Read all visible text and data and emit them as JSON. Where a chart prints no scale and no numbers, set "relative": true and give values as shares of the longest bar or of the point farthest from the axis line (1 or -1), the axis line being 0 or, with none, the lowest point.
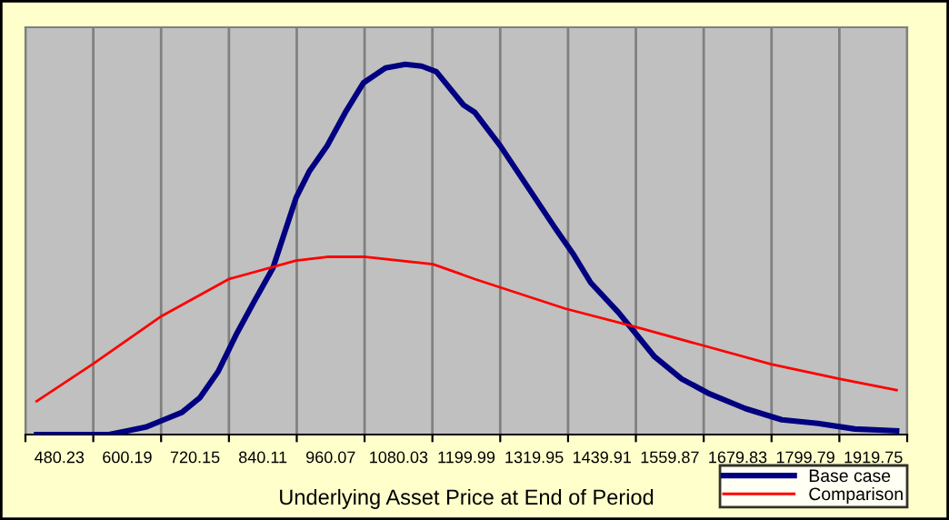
{
  "chart_data": {
    "type": "line",
    "xlabel": "Underlying Asset Price at End of Period",
    "relative": true,
    "xlim": [
      420.25,
      1979.73
    ],
    "xticks": [
      {
        "value": 420.25,
        "label": null
      },
      {
        "value": 480.23,
        "label": "480.23"
      },
      {
        "value": 540.21,
        "label": null
      },
      {
        "value": 600.19,
        "label": "600.19"
      },
      {
        "value": 660.17,
        "label": null
      },
      {
        "value": 720.15,
        "label": "720.15"
      },
      {
        "value": 780.13,
        "label": null
      },
      {
        "value": 840.11,
        "label": "840.11"
      },
      {
        "value": 900.09,
        "label": null
      },
      {
        "value": 960.07,
        "label": "960.07"
      },
      {
        "value": 1020.05,
        "label": null
      },
      {
        "value": 1080.03,
        "label": "1080.03"
      },
      {
        "value": 1140.01,
        "label": null
      },
      {
        "value": 1199.99,
        "label": "1199.99"
      },
      {
        "value": 1259.97,
        "label": null
      },
      {
        "value": 1319.95,
        "label": "1319.95"
      },
      {
        "value": 1379.93,
        "label": null
      },
      {
        "value": 1439.91,
        "label": "1439.91"
      },
      {
        "value": 1499.89,
        "label": null
      },
      {
        "value": 1559.87,
        "label": "1559.87"
      },
      {
        "value": 1619.85,
        "label": null
      },
      {
        "value": 1679.83,
        "label": "1679.83"
      },
      {
        "value": 1739.81,
        "label": null
      },
      {
        "value": 1799.79,
        "label": "1799.79"
      },
      {
        "value": 1859.77,
        "label": null
      },
      {
        "value": 1919.75,
        "label": "1919.75"
      },
      {
        "value": 1979.73,
        "label": null
      }
    ],
    "grid": "x",
    "legend": "bottom right",
    "marker": "none",
    "line_style": "solid",
    "series": [
      {
        "name": "Base case",
        "color": "#000080",
        "x": [
          440,
          568,
          600,
          633,
          665,
          697,
          729,
          761,
          793,
          825,
          858,
          899,
          922,
          954,
          986,
          1018,
          1057,
          1092,
          1121,
          1147,
          1195,
          1215,
          1260,
          1308,
          1356,
          1388,
          1420,
          1469,
          1501,
          1533,
          1581,
          1630,
          1694,
          1758,
          1822,
          1887,
          1961
        ],
        "values": [
          0,
          0,
          0.01,
          0.02,
          0.04,
          0.06,
          0.1,
          0.17,
          0.27,
          0.36,
          0.45,
          0.64,
          0.71,
          0.78,
          0.87,
          0.95,
          0.99,
          1,
          0.995,
          0.98,
          0.89,
          0.87,
          0.78,
          0.67,
          0.56,
          0.49,
          0.41,
          0.33,
          0.27,
          0.21,
          0.15,
          0.11,
          0.07,
          0.04,
          0.03,
          0.015,
          0.01
        ]
      },
      {
        "name": "Comparison",
        "color": "#ff0000",
        "x": [
          440,
          539,
          661,
          780,
          899,
          954,
          1022,
          1141,
          1215,
          1375,
          1501,
          1620,
          1739,
          1861,
          1961
        ],
        "values": [
          0.09,
          0.19,
          0.32,
          0.42,
          0.47,
          0.48,
          0.48,
          0.46,
          0.42,
          0.34,
          0.29,
          0.24,
          0.19,
          0.15,
          0.12
        ]
      }
    ]
  }
}
